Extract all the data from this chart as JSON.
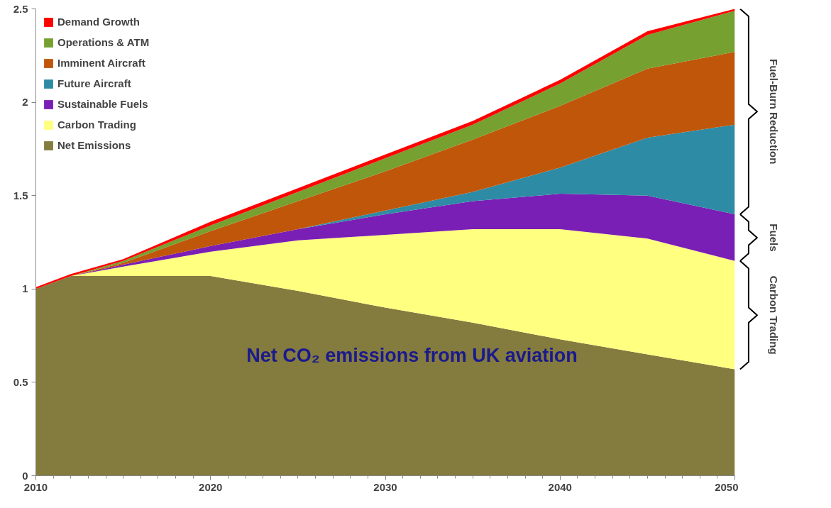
{
  "chart_data": {
    "type": "area",
    "stacked": true,
    "x": [
      2010,
      2012,
      2015,
      2020,
      2025,
      2030,
      2035,
      2040,
      2045,
      2050
    ],
    "series": [
      {
        "name": "Net Emissions",
        "color": "#847b3f",
        "values": [
          1.0,
          1.07,
          1.07,
          1.07,
          0.99,
          0.9,
          0.82,
          0.73,
          0.65,
          0.57
        ]
      },
      {
        "name": "Carbon Trading",
        "color": "#ffff80",
        "values": [
          0,
          0,
          0.05,
          0.13,
          0.27,
          0.39,
          0.5,
          0.59,
          0.62,
          0.58
        ]
      },
      {
        "name": "Sustainable Fuels",
        "color": "#7a1fb5",
        "values": [
          0,
          0,
          0.01,
          0.03,
          0.06,
          0.11,
          0.15,
          0.19,
          0.23,
          0.25
        ]
      },
      {
        "name": "Future Aircraft",
        "color": "#2e8ba5",
        "values": [
          0,
          0,
          0,
          0,
          0,
          0.02,
          0.05,
          0.14,
          0.31,
          0.48
        ]
      },
      {
        "name": "Imminent Aircraft",
        "color": "#c0560a",
        "values": [
          0,
          0,
          0.01,
          0.08,
          0.15,
          0.21,
          0.28,
          0.33,
          0.37,
          0.39
        ]
      },
      {
        "name": "Operations & ATM",
        "color": "#76a030",
        "values": [
          0,
          0,
          0.01,
          0.03,
          0.05,
          0.07,
          0.08,
          0.12,
          0.18,
          0.22
        ]
      },
      {
        "name": "Demand Growth",
        "color": "#ff0000",
        "values": [
          0.01,
          0.01,
          0.01,
          0.02,
          0.02,
          0.02,
          0.02,
          0.02,
          0.02,
          0.01
        ]
      }
    ],
    "xlim": [
      2010,
      2050
    ],
    "xticks": [
      2010,
      2020,
      2030,
      2040,
      2050
    ],
    "ylim": [
      0,
      2.5
    ],
    "yticks": [
      0,
      {
        "value": 0.5,
        "label": "0.5"
      },
      1,
      {
        "value": 1.5,
        "label": "1.5"
      },
      2,
      {
        "value": 2.5,
        "label": "2.5"
      }
    ],
    "grid": false,
    "legend": "top left",
    "annotations": [
      "Net CO₂ emissions from UK aviation",
      "Fuel-Burn Reduction",
      "Fuels",
      "Carbon Trading"
    ]
  }
}
